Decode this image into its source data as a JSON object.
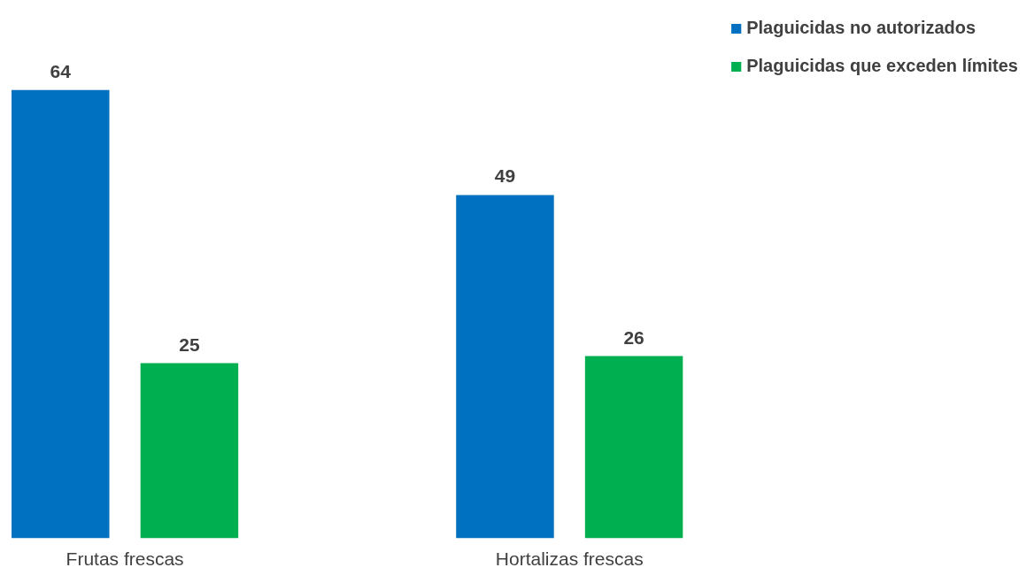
{
  "chart_data": {
    "type": "bar",
    "categories": [
      "Frutas frescas",
      "Hortalizas frescas"
    ],
    "series": [
      {
        "name": "Plaguicidas no autorizados",
        "color": "#0070c0",
        "values": [
          64,
          49
        ]
      },
      {
        "name": "Plaguicidas que exceden límites",
        "color": "#00b050",
        "values": [
          25,
          26
        ]
      }
    ],
    "data_labels": true,
    "legend": "top_right",
    "grid": false
  }
}
